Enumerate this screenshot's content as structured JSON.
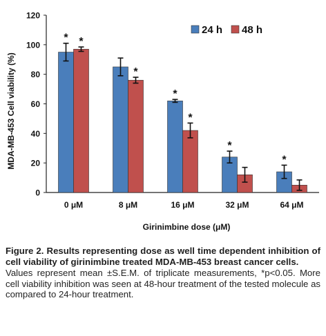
{
  "chart_data": {
    "type": "bar",
    "categories": [
      "0 μM",
      "8 μM",
      "16 μM",
      "32 μM",
      "64 μM"
    ],
    "series": [
      {
        "name": "24 h",
        "color": "#4a7ebb",
        "values": [
          95,
          85,
          62,
          24,
          14
        ],
        "errors": [
          6,
          6,
          1,
          4,
          4.5
        ],
        "significance": [
          "*",
          "",
          "*",
          "*",
          "*"
        ]
      },
      {
        "name": "48 h",
        "color": "#c0504d",
        "values": [
          97,
          76,
          42,
          12,
          5
        ],
        "errors": [
          1.5,
          2,
          5,
          5,
          3.5
        ],
        "significance": [
          "*",
          "*",
          "*",
          "",
          ""
        ]
      }
    ],
    "xlabel": "Girinimbine dose (μM)",
    "ylabel": "MDA-MB-453 Cell viability (%)",
    "ylim": [
      0,
      120
    ],
    "yticks": [
      0,
      20,
      40,
      60,
      80,
      100,
      120
    ],
    "grid": false,
    "legend_position": "top-right"
  },
  "caption": {
    "title": "Figure 2. Results representing dose as well time dependent inhibition of cell viability of girinimbine treated MDA-MB-453 breast cancer cells.",
    "note": "Values represent mean ±S.E.M. of triplicate measurements, *p<0.05. More cell viability inhibition was seen at 48-hour treatment of the tested molecule as compared to 24-hour treatment."
  }
}
